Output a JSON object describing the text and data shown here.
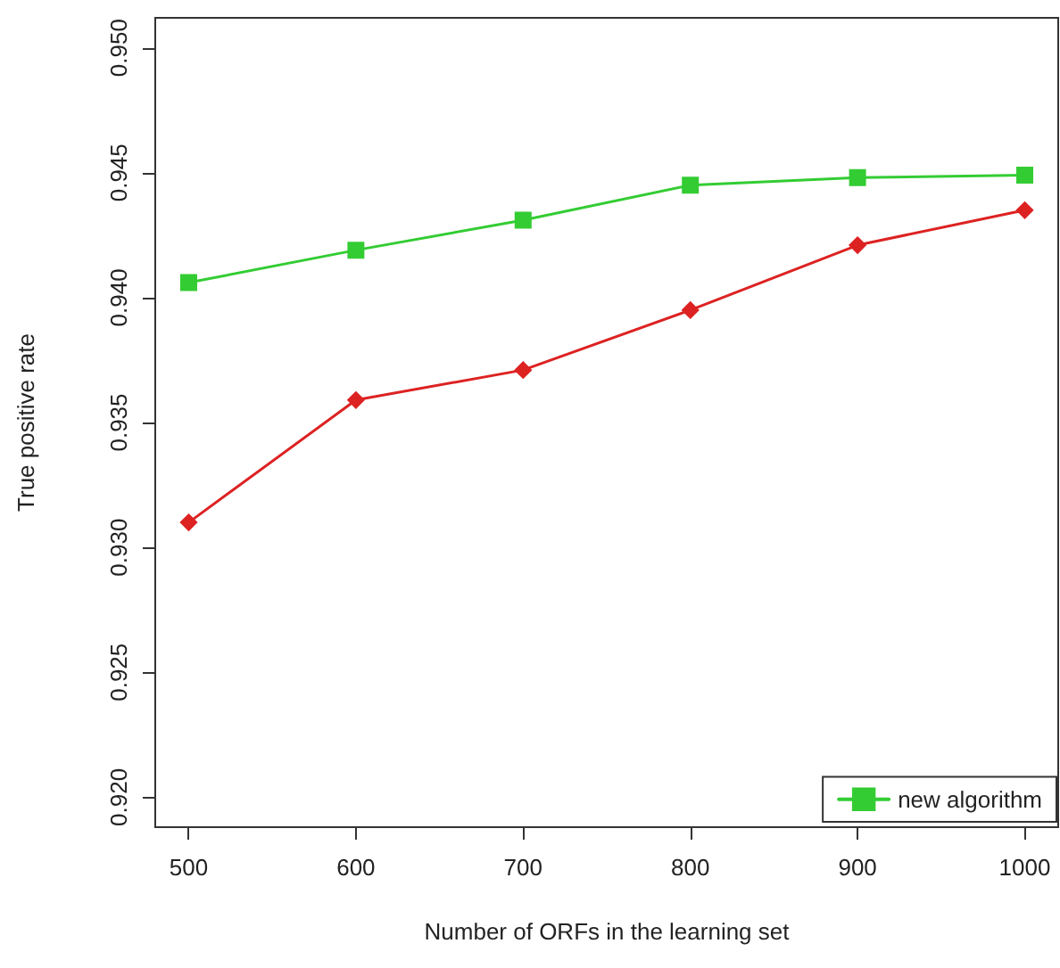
{
  "chart_data": {
    "type": "line",
    "xlabel": "Number of ORFs in the learning set",
    "ylabel": "True positive rate",
    "x": [
      500,
      600,
      700,
      800,
      900,
      1000
    ],
    "series": [
      {
        "name": "new algorithm",
        "color": "#33cc33",
        "marker": "square",
        "values": [
          0.9406,
          0.9419,
          0.9431,
          0.9445,
          0.9448,
          0.9449
        ]
      },
      {
        "color": "#dd2222",
        "marker": "diamond",
        "values": [
          0.931,
          0.9359,
          0.9371,
          0.9395,
          0.9421,
          0.9435
        ]
      }
    ],
    "xlim": [
      480,
      1020
    ],
    "xticks": [
      500,
      600,
      700,
      800,
      900,
      1000
    ],
    "ylim": [
      0.9188,
      0.9512
    ],
    "yticks": [
      {
        "value": 0.92,
        "label": "0.920"
      },
      0.925,
      {
        "value": 0.93,
        "label": "0.930"
      },
      0.935,
      {
        "value": 0.94,
        "label": "0.940"
      },
      0.945,
      {
        "value": 0.95,
        "label": "0.950"
      }
    ],
    "grid": false,
    "legend": "bottom right",
    "line_style": "solid"
  }
}
